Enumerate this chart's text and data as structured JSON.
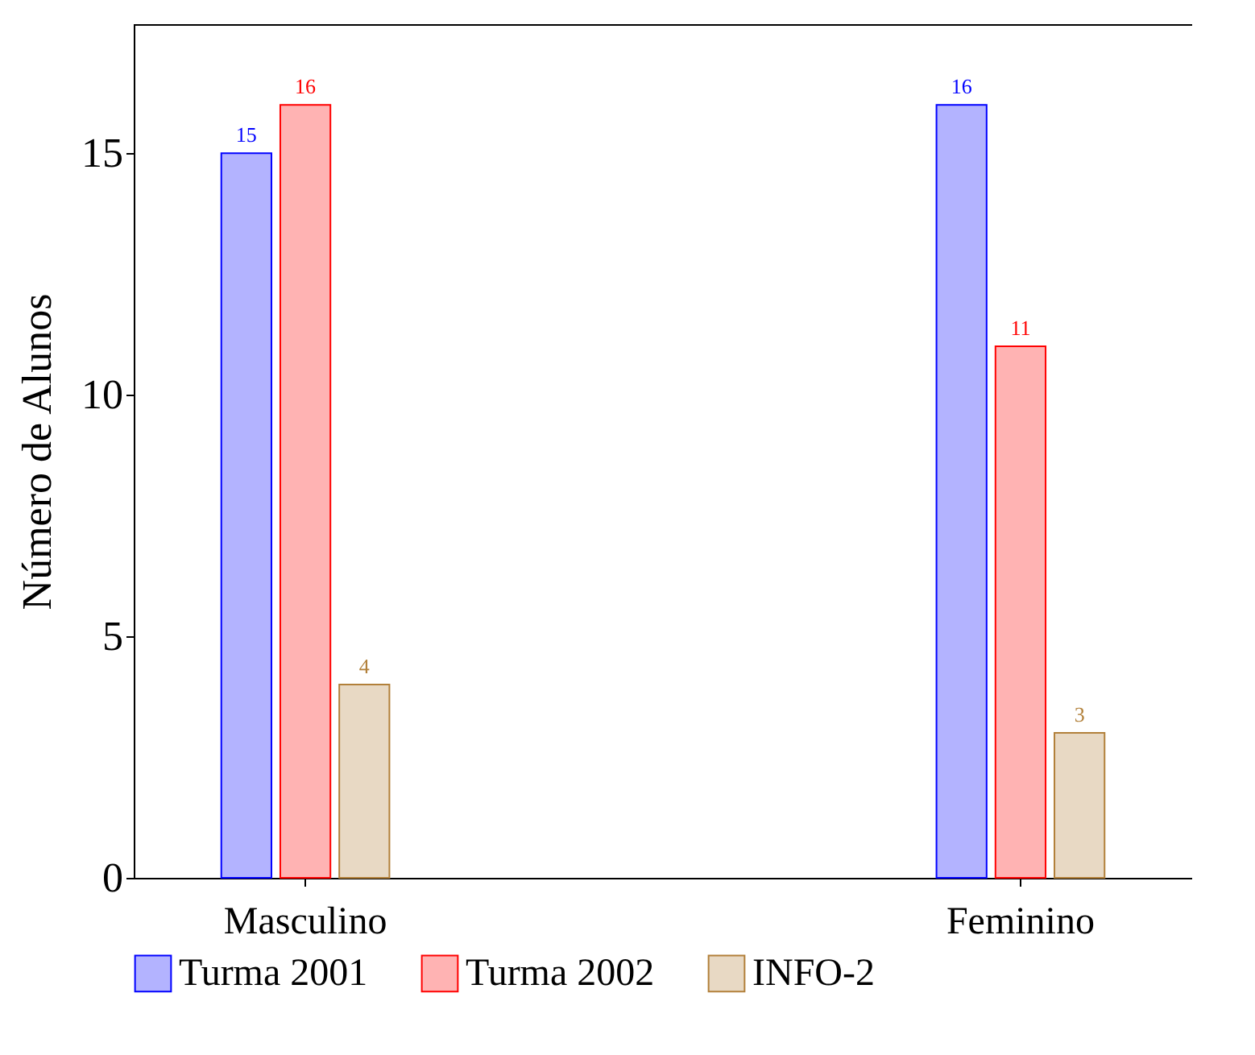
{
  "chart_data": {
    "type": "bar",
    "ylabel": "Número de Alunos",
    "categories": [
      "Masculino",
      "Feminino"
    ],
    "series": [
      {
        "name": "Turma 2001",
        "color": "#b3b3ff",
        "values": [
          15,
          16
        ]
      },
      {
        "name": "Turma 2002",
        "color": "#ffb3b3",
        "values": [
          16,
          11
        ]
      },
      {
        "name": "INFO-2",
        "color": "#e8d9c4",
        "values": [
          4,
          3
        ]
      }
    ],
    "ylim": [
      0,
      17.67
    ],
    "yticks": [
      0,
      5,
      10,
      15
    ],
    "data_labels": true,
    "legend": "bottom",
    "grid": false
  }
}
